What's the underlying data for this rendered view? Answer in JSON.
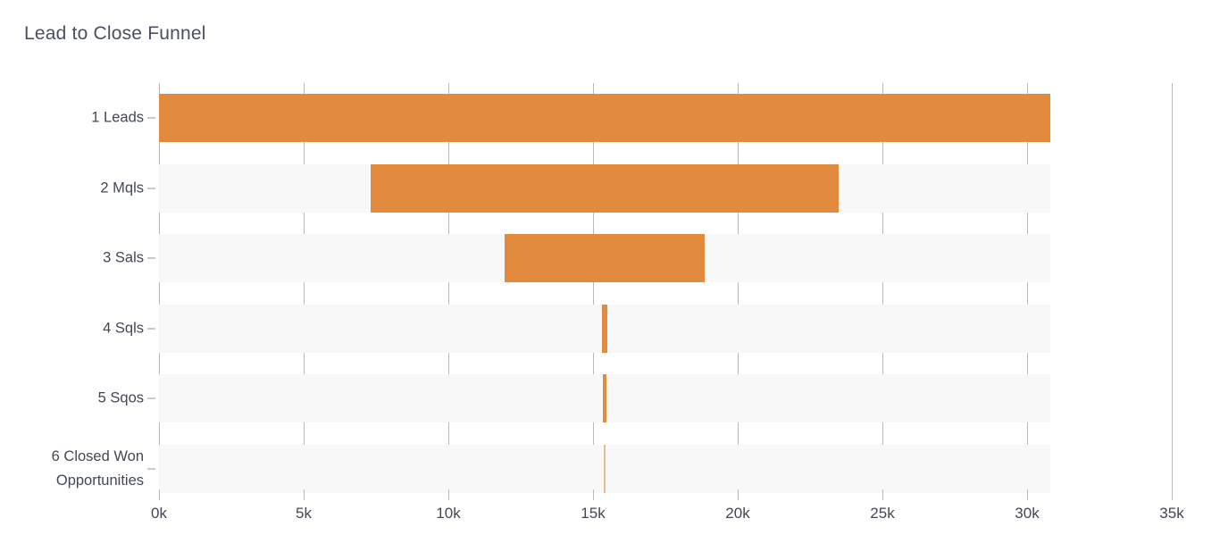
{
  "title": "Lead to Close Funnel",
  "chart_data": {
    "type": "bar",
    "subtype": "centered-funnel",
    "orientation": "horizontal",
    "title": "Lead to Close Funnel",
    "categories": [
      "1 Leads",
      "2 Mqls",
      "3 Sals",
      "4 Sqls",
      "5 Sqos",
      "6 Closed Won Opportunities"
    ],
    "values": [
      30800,
      16200,
      6900,
      160,
      130,
      35
    ],
    "x_axis": {
      "min": 0,
      "max": 35000,
      "tick_interval": 5000,
      "tick_labels": [
        "0k",
        "5k",
        "10k",
        "15k",
        "20k",
        "25k",
        "30k",
        "35k"
      ]
    },
    "y_axis_label": "",
    "x_axis_label": "",
    "grid": true,
    "legend": false,
    "colors": {
      "bar": "#e28a3d",
      "row_background": "#f8f8f8",
      "gridline": "#b9b9b9",
      "tick": "#c9c9c9",
      "text": "#424659",
      "title_text": "#4b4f63",
      "background": "#ffffff"
    }
  }
}
